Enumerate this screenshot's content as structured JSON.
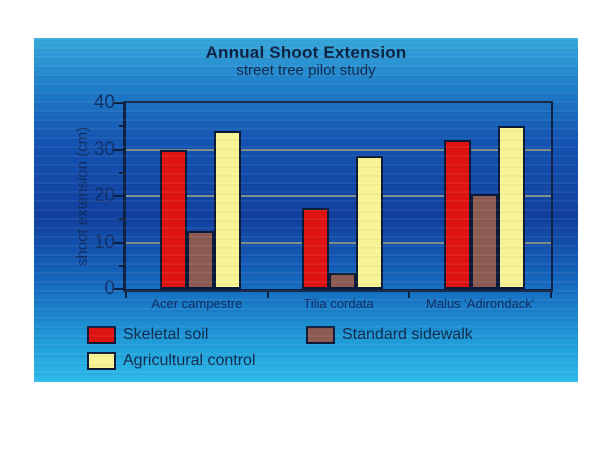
{
  "chart_data": {
    "type": "bar",
    "title": "Annual Shoot Extension",
    "subtitle": "street tree pilot study",
    "ylabel": "shoot extension (cm)",
    "xlabel": "",
    "categories": [
      "Acer campestre",
      "Tilia cordata",
      "Malus 'Adirondack'"
    ],
    "series": [
      {
        "name": "Skeletal soil",
        "color": "#e01313",
        "values": [
          30,
          17.5,
          32
        ]
      },
      {
        "name": "Standard sidewalk",
        "color": "#8d5b52",
        "values": [
          12.5,
          3.5,
          20.5
        ]
      },
      {
        "name": "Agricultural control",
        "color": "#f8f494",
        "values": [
          34,
          28.5,
          35
        ]
      }
    ],
    "ylim": [
      0,
      40
    ],
    "yticks_major": [
      0,
      10,
      20,
      30,
      40
    ],
    "yticks_minor": [
      5,
      15,
      25,
      35
    ],
    "gridlines": [
      10,
      20,
      30
    ],
    "grid": "horizontal-major",
    "legend_position": "bottom-left"
  },
  "colors": {
    "page_background": "#ffffff",
    "slide_gradient": [
      "#38a9db",
      "#2082cc",
      "#1454b2",
      "#11409f",
      "#1565bd",
      "#1f99d7",
      "#2dbae9"
    ],
    "axis": "#0e2142",
    "bar_border": "#0b1a38",
    "gridline": "#7e9089",
    "title_text": "#0e2140",
    "subtitle_text": "#12294e",
    "tick_text": "#12306a",
    "category_text": "#122d63",
    "legend_text": "#12294e"
  }
}
